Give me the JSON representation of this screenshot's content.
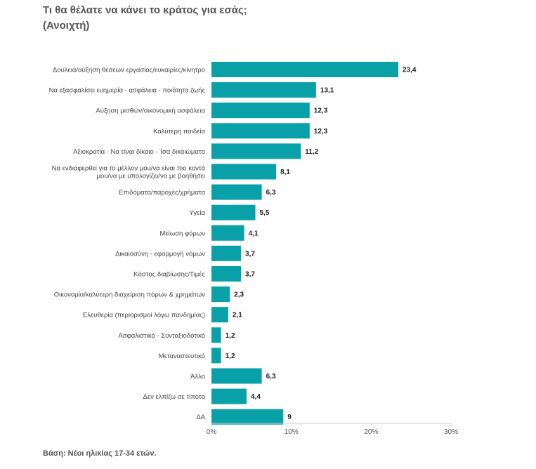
{
  "title": "Τι θα θέλατε να κάνει το κράτος για εσάς;",
  "subtitle": "(Ανοιχτή)",
  "footnote": "Βάση: Νέοι ηλικίας 17-34 ετών.",
  "colors": {
    "bar": "#0aa0a8",
    "axis": "#cfcfcf"
  },
  "chart_data": {
    "type": "bar",
    "orientation": "horizontal",
    "categories": [
      "Δουλειά/αύξηση θέσεων εργασίας/ευκαιρίες/κίνητρο",
      "Να εξασφαλίσει ευημερία - ασφάλεια - ποιότητα ζωής",
      "Αύξηση μισθών/οικονομική ασφάλεια",
      "Καλύτερη παιδεία",
      "Αξιοκρατία - Να είναι δίκαιο - Ίσα δικαιώματα",
      "Να ενδιαφερθεί για το μέλλον μου/να είναι πιο κοντά\nμου/να με υπολογίζει/να με βοηθήσει",
      "Επιδόματα/παροχές/χρήματα",
      "Υγεία",
      "Μείωση φόρων",
      "Δικαιοσύνη - εφαρμογή νόμων",
      "Κόστος διαβίωσης/Τιμές",
      "Οικονομία/καλύτερη διαχείριση πόρων & χρημάτων",
      "Ελευθερία (περιορισμοί λόγω πανδημίας)",
      "Ασφαλιστικό - Συνταξιοδοτικό",
      "Μεταναστευτικό",
      "Άλλο",
      "Δεν ελπίζω σε τίποτα",
      "ΔΑ"
    ],
    "values": [
      23.4,
      13.1,
      12.3,
      12.3,
      11.2,
      8.1,
      6.3,
      5.5,
      4.1,
      3.7,
      3.7,
      2.3,
      2.1,
      1.2,
      1.2,
      6.3,
      4.4,
      9
    ],
    "value_labels": [
      "23,4",
      "13,1",
      "12,3",
      "12,3",
      "11,2",
      "8,1",
      "6,3",
      "5,5",
      "4,1",
      "3,7",
      "3,7",
      "2,3",
      "2,1",
      "1,2",
      "1,2",
      "6,3",
      "4,4",
      "9"
    ],
    "xlim": [
      0,
      30
    ],
    "xticks": [
      0,
      10,
      20,
      30
    ],
    "xtick_labels": [
      "0%",
      "10%",
      "20%",
      "30%"
    ],
    "grid": false,
    "legend": "none"
  }
}
